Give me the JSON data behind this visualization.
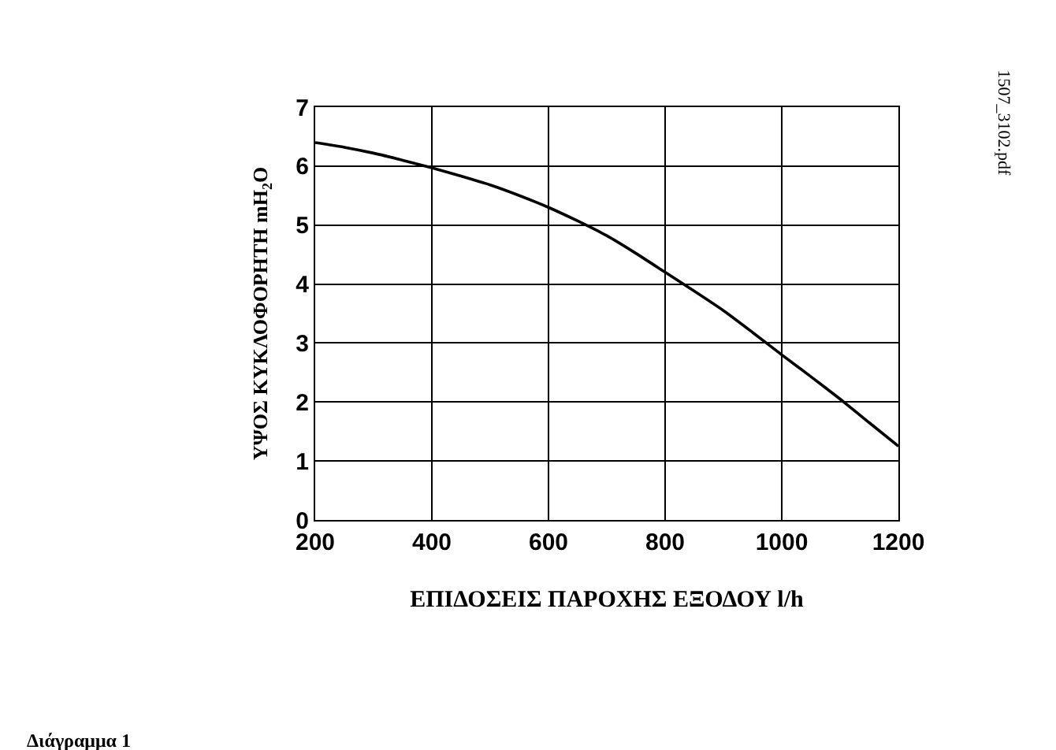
{
  "chart_data": {
    "type": "line",
    "xlabel": "ΕΠΙΔΟΣΕΙΣ ΠΑΡΟΧΗΣ ΕΞΟΔΟΥ l/h",
    "ylabel": "ΥΨΟΣ ΚΥΚΛΟΦΟΡΗΤΗ mH$_{2}$O",
    "annotations": [
      "1507_3102.pdf",
      "Διάγραμμα 1"
    ],
    "x": [
      200,
      250,
      300,
      350,
      400,
      450,
      500,
      550,
      600,
      650,
      700,
      750,
      800,
      850,
      900,
      950,
      1000,
      1050,
      1100,
      1150,
      1200
    ],
    "series": [
      {
        "color": "#000000",
        "values": [
          6.4,
          6.32,
          6.22,
          6.1,
          5.97,
          5.83,
          5.68,
          5.5,
          5.3,
          5.07,
          4.82,
          4.52,
          4.2,
          3.88,
          3.55,
          3.18,
          2.8,
          2.43,
          2.05,
          1.65,
          1.25
        ]
      }
    ],
    "xlim": [
      200,
      1200
    ],
    "xticks": [
      200,
      400,
      600,
      800,
      1000,
      1200
    ],
    "ylim": [
      0,
      7
    ],
    "yticks": [
      0,
      1,
      2,
      3,
      4,
      5,
      6,
      7
    ],
    "grid": true,
    "marker": "none",
    "line_style": "solid"
  }
}
